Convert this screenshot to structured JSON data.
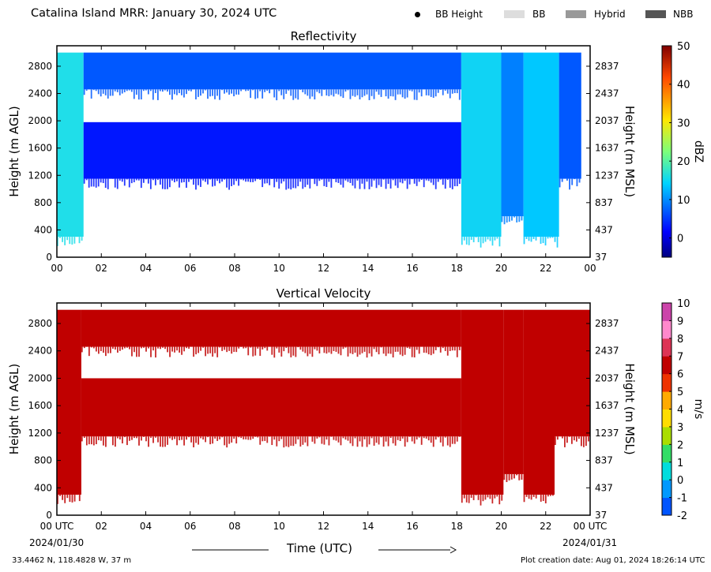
{
  "title": "Catalina Island MRR:  January 30, 2024 UTC",
  "legend": [
    {
      "label": "BB Height",
      "kind": "dot",
      "color": "#000000"
    },
    {
      "label": "BB",
      "kind": "swatch",
      "color": "#dddddd"
    },
    {
      "label": "Hybrid",
      "kind": "swatch",
      "color": "#999999"
    },
    {
      "label": "NBB",
      "kind": "swatch",
      "color": "#555555"
    }
  ],
  "x_axis": {
    "label": "Time (UTC)",
    "ticks_top": [
      "00",
      "02",
      "04",
      "06",
      "08",
      "10",
      "12",
      "14",
      "16",
      "18",
      "20",
      "22",
      "00"
    ],
    "ticks_bottom": [
      "00 UTC",
      "02",
      "04",
      "06",
      "08",
      "10",
      "12",
      "14",
      "16",
      "18",
      "20",
      "22",
      "00 UTC"
    ],
    "start_date": "2024/01/30",
    "end_date": "2024/01/31"
  },
  "footer": {
    "location": "33.4462 N, 118.4828 W, 37 m",
    "creation": "Plot creation date: Aug 01, 2024 18:26:14 UTC"
  },
  "chart_data": [
    {
      "type": "heatmap",
      "title": "Reflectivity",
      "xlabel": "",
      "ylabel": "Height (m AGL)",
      "ylabel_right": "Height (m MSL)",
      "xlim": [
        0,
        24
      ],
      "ylim": [
        0,
        3100
      ],
      "yticks": [
        0,
        400,
        800,
        1200,
        1600,
        2000,
        2400,
        2800
      ],
      "yticks_right": [
        "37",
        "437",
        "837",
        "1237",
        "1637",
        "2037",
        "2437",
        "2837"
      ],
      "colorbar": {
        "label": "dBZ",
        "range": [
          -5,
          50
        ],
        "ticks": [
          0,
          10,
          20,
          30,
          40,
          50
        ]
      },
      "regions": [
        {
          "t0": 0.0,
          "t1": 1.2,
          "h0": 300,
          "h1": 3000,
          "value": 12
        },
        {
          "t0": 1.2,
          "t1": 18.2,
          "h0": 1150,
          "h1": 1980,
          "value": 1
        },
        {
          "t0": 1.2,
          "t1": 18.2,
          "h0": 2460,
          "h1": 3000,
          "value": 4
        },
        {
          "t0": 18.2,
          "t1": 20.0,
          "h0": 300,
          "h1": 3000,
          "value": 11
        },
        {
          "t0": 20.0,
          "t1": 21.0,
          "h0": 600,
          "h1": 3000,
          "value": 6
        },
        {
          "t0": 21.0,
          "t1": 22.6,
          "h0": 300,
          "h1": 3000,
          "value": 10
        },
        {
          "t0": 22.6,
          "t1": 23.6,
          "h0": 1150,
          "h1": 3000,
          "value": 4
        }
      ]
    },
    {
      "type": "heatmap",
      "title": "Vertical Velocity",
      "xlabel": "Time (UTC)",
      "ylabel": "Height (m AGL)",
      "ylabel_right": "Height (m MSL)",
      "xlim": [
        0,
        24
      ],
      "ylim": [
        0,
        3100
      ],
      "yticks": [
        0,
        400,
        800,
        1200,
        1600,
        2000,
        2400,
        2800
      ],
      "yticks_right": [
        "37",
        "437",
        "837",
        "1237",
        "1637",
        "2037",
        "2437",
        "2837"
      ],
      "colorbar": {
        "label": "m/s",
        "range": [
          -2,
          10
        ],
        "ticks": [
          -2,
          -1,
          0,
          1,
          2,
          3,
          4,
          5,
          6,
          7,
          8,
          9,
          10
        ]
      },
      "regions": [
        {
          "t0": 0.0,
          "t1": 1.1,
          "h0": 300,
          "h1": 3000,
          "value": 6
        },
        {
          "t0": 1.1,
          "t1": 18.2,
          "h0": 1150,
          "h1": 2000,
          "value": 6
        },
        {
          "t0": 1.1,
          "t1": 18.2,
          "h0": 2460,
          "h1": 3000,
          "value": 6
        },
        {
          "t0": 18.2,
          "t1": 20.1,
          "h0": 300,
          "h1": 3000,
          "value": 6
        },
        {
          "t0": 20.1,
          "t1": 21.0,
          "h0": 600,
          "h1": 3000,
          "value": 6
        },
        {
          "t0": 21.0,
          "t1": 22.4,
          "h0": 300,
          "h1": 3000,
          "value": 6
        },
        {
          "t0": 22.4,
          "t1": 24.0,
          "h0": 1150,
          "h1": 3000,
          "value": 6
        }
      ]
    }
  ]
}
